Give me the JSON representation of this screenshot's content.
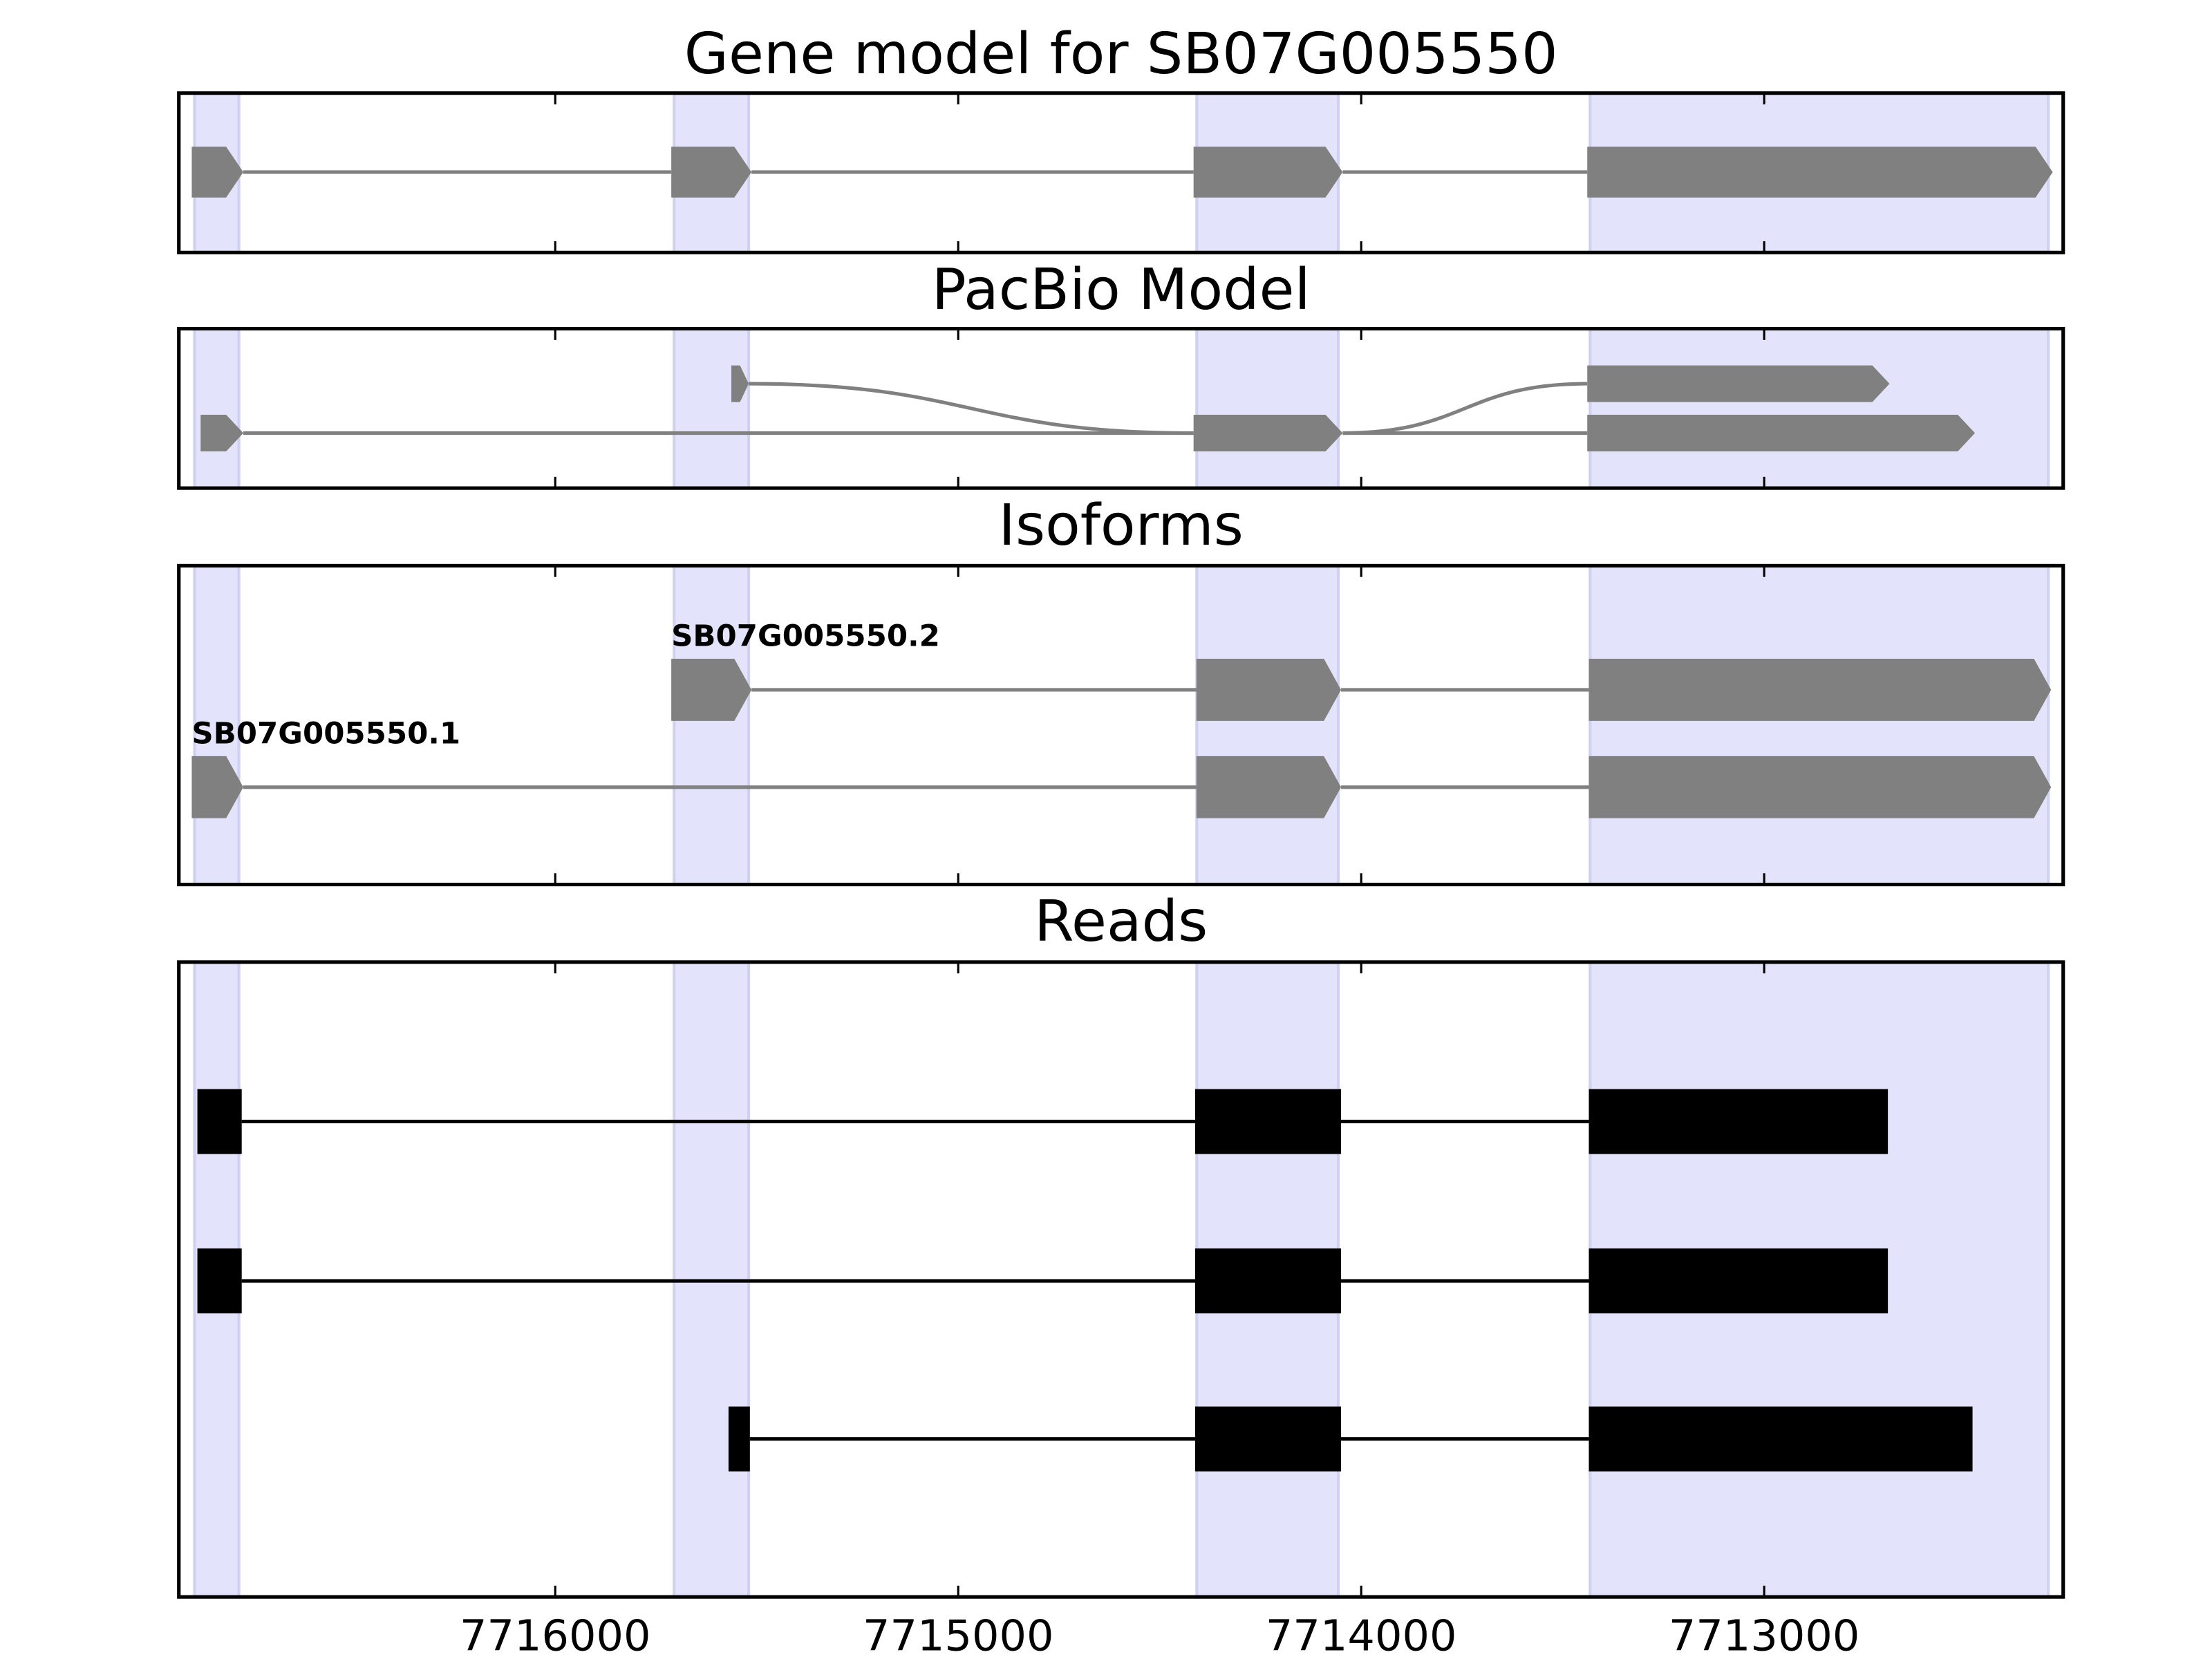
{
  "chart_data": {
    "type": "gene-track",
    "xlim": [
      7716934,
      7712258
    ],
    "xticks": [
      7716000,
      7715000,
      7714000,
      7713000
    ],
    "shaded": [
      [
        7716895,
        7716785
      ],
      [
        7715705,
        7715520
      ],
      [
        7714408,
        7714057
      ],
      [
        7713432,
        7712295
      ]
    ],
    "shade_color": "#e3e3fb",
    "panels": [
      {
        "title": "Gene model for SB07G005550",
        "color": "#808080",
        "shape": "arrow",
        "tracks": [
          {
            "exons": [
              [
                7716902,
                7716774
              ],
              [
                7715712,
                7715513
              ],
              [
                7714416,
                7714046
              ],
              [
                7713439,
                7712284
              ]
            ]
          }
        ]
      },
      {
        "title": "PacBio Model",
        "color": "#808080",
        "shape": "arrow",
        "tracks": [
          {
            "exons": [
              [
                7715563,
                7715520
              ],
              [
                7714416,
                7714046
              ],
              [
                7713439,
                7712689
              ]
            ]
          },
          {
            "exons": [
              [
                7716880,
                7716774
              ],
              [
                7714416,
                7714046
              ],
              [
                7713439,
                7712477
              ]
            ]
          }
        ]
      },
      {
        "title": "Isoforms",
        "color": "#808080",
        "shape": "arrow",
        "tracks": [
          {
            "name": "SB07G005550.2",
            "exons": [
              [
                7715712,
                7715513
              ],
              [
                7714409,
                7714050
              ],
              [
                7713435,
                7712288
              ]
            ]
          },
          {
            "name": "SB07G005550.1",
            "exons": [
              [
                7716902,
                7716774
              ],
              [
                7714409,
                7714050
              ],
              [
                7713435,
                7712288
              ]
            ]
          }
        ]
      },
      {
        "title": "Reads",
        "color": "#000000",
        "shape": "box",
        "tracks": [
          {
            "exons": [
              [
                7716888,
                7716778
              ],
              [
                7714412,
                7714050
              ],
              [
                7713435,
                7712693
              ]
            ]
          },
          {
            "exons": [
              [
                7716888,
                7716778
              ],
              [
                7714412,
                7714050
              ],
              [
                7713435,
                7712693
              ]
            ]
          },
          {
            "exons": [
              [
                7715570,
                7715517
              ],
              [
                7714412,
                7714050
              ],
              [
                7713435,
                7712483
              ]
            ]
          }
        ]
      }
    ]
  }
}
